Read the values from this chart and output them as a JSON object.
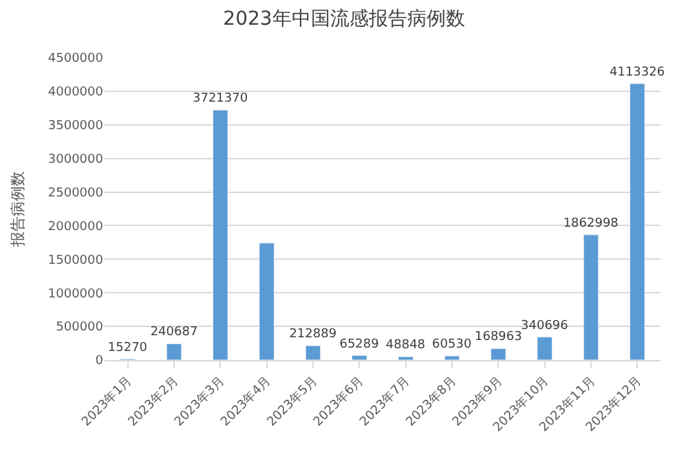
{
  "chart_data": {
    "type": "bar",
    "title": "2023年中国流感报告病例数",
    "ylabel": "报告病例数",
    "categories": [
      "2023年1月",
      "2023年2月",
      "2023年3月",
      "2023年4月",
      "2023年5月",
      "2023年6月",
      "2023年7月",
      "2023年8月",
      "2023年9月",
      "2023年10月",
      "2023年11月",
      "2023年12月"
    ],
    "values": [
      15270,
      240687,
      3721370,
      1740000,
      212889,
      65289,
      48848,
      60530,
      168963,
      340696,
      1862998,
      4113326
    ],
    "value_labels": [
      "15270",
      "240687",
      "3721370",
      null,
      "212889",
      "65289",
      "48848",
      "60530",
      "168963",
      "340696",
      "1862998",
      "4113326"
    ],
    "color": "#5b9bd5",
    "ylim": [
      0,
      4500000
    ],
    "yticks": [
      0,
      500000,
      1000000,
      1500000,
      2000000,
      2500000,
      3000000,
      3500000,
      4000000,
      4500000
    ],
    "grid": "y",
    "legend": false
  }
}
